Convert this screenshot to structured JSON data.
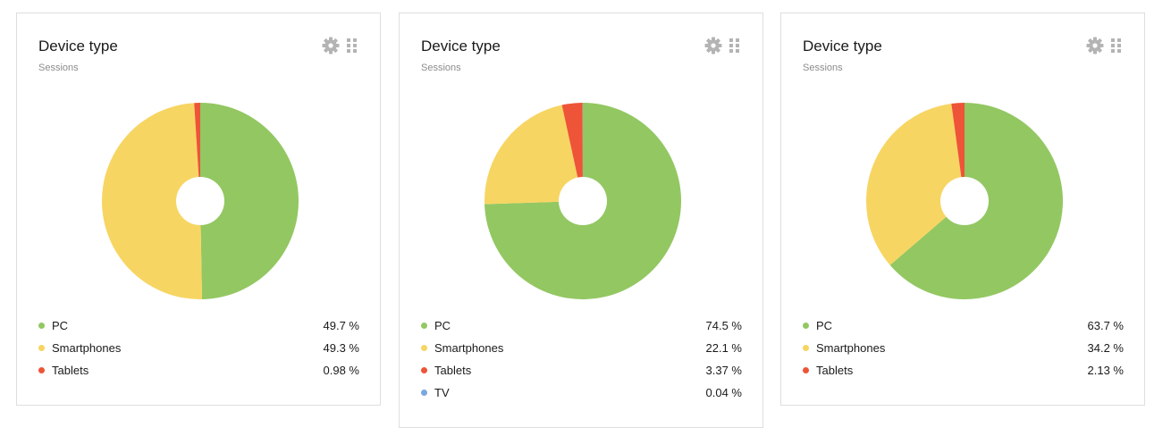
{
  "colors": {
    "PC": "#93c762",
    "Smartphones": "#f7d562",
    "Tablets": "#ee5438",
    "TV": "#7aa7dd",
    "icon": "#b4b4b4"
  },
  "icons": {
    "settings": "gear-icon",
    "drag": "drag-handle-icon"
  },
  "chart_data": [
    {
      "type": "pie",
      "title": "Device type",
      "subtitle": "Sessions",
      "legend_position": "bottom",
      "categories": [
        "PC",
        "Smartphones",
        "Tablets"
      ],
      "values": [
        49.7,
        49.3,
        0.98
      ],
      "value_labels": [
        "49.7 %",
        "49.3 %",
        "0.98 %"
      ]
    },
    {
      "type": "pie",
      "title": "Device type",
      "subtitle": "Sessions",
      "legend_position": "bottom",
      "categories": [
        "PC",
        "Smartphones",
        "Tablets",
        "TV"
      ],
      "values": [
        74.5,
        22.1,
        3.37,
        0.04
      ],
      "value_labels": [
        "74.5 %",
        "22.1 %",
        "3.37 %",
        "0.04 %"
      ]
    },
    {
      "type": "pie",
      "title": "Device type",
      "subtitle": "Sessions",
      "legend_position": "bottom",
      "categories": [
        "PC",
        "Smartphones",
        "Tablets"
      ],
      "values": [
        63.7,
        34.2,
        2.13
      ],
      "value_labels": [
        "63.7 %",
        "34.2 %",
        "2.13 %"
      ]
    }
  ]
}
